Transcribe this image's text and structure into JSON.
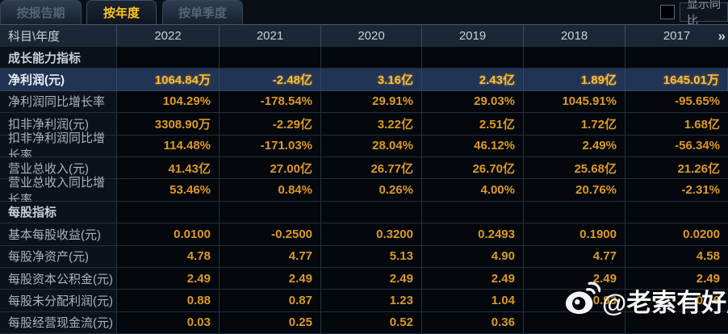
{
  "tabs": [
    {
      "label": "按报告期",
      "active": false
    },
    {
      "label": "按年度",
      "active": true
    },
    {
      "label": "按单季度",
      "active": false
    }
  ],
  "controls": {
    "show_yoy_label": "显示同比",
    "checkbox_checked": false
  },
  "table": {
    "corner_label": "科目\\年度",
    "years": [
      "2022",
      "2021",
      "2020",
      "2019",
      "2018",
      "2017"
    ],
    "more_icon": "»",
    "rows": [
      {
        "label": "成长能力指标",
        "type": "section",
        "values": [
          "",
          "",
          "",
          "",
          "",
          ""
        ]
      },
      {
        "label": "净利润(元)",
        "type": "highlight",
        "values": [
          "1064.84万",
          "-2.48亿",
          "3.16亿",
          "2.43亿",
          "1.89亿",
          "1645.01万"
        ]
      },
      {
        "label": "净利润同比增长率",
        "type": "data",
        "values": [
          "104.29%",
          "-178.54%",
          "29.91%",
          "29.03%",
          "1045.91%",
          "-95.65%"
        ]
      },
      {
        "label": "扣非净利润(元)",
        "type": "data",
        "values": [
          "3308.90万",
          "-2.29亿",
          "3.22亿",
          "2.51亿",
          "1.72亿",
          "1.68亿"
        ]
      },
      {
        "label": "扣非净利润同比增长率",
        "type": "data",
        "values": [
          "114.48%",
          "-171.03%",
          "28.04%",
          "46.12%",
          "2.49%",
          "-56.34%"
        ]
      },
      {
        "label": "营业总收入(元)",
        "type": "data",
        "values": [
          "41.43亿",
          "27.00亿",
          "26.77亿",
          "26.70亿",
          "25.68亿",
          "21.26亿"
        ]
      },
      {
        "label": "营业总收入同比增长率",
        "type": "data",
        "values": [
          "53.46%",
          "0.84%",
          "0.26%",
          "4.00%",
          "20.76%",
          "-2.31%"
        ]
      },
      {
        "label": "每股指标",
        "type": "section",
        "values": [
          "",
          "",
          "",
          "",
          "",
          ""
        ]
      },
      {
        "label": "基本每股收益(元)",
        "type": "data",
        "values": [
          "0.0100",
          "-0.2500",
          "0.3200",
          "0.2493",
          "0.1900",
          "0.0200"
        ]
      },
      {
        "label": "每股净资产(元)",
        "type": "data",
        "values": [
          "4.78",
          "4.77",
          "5.13",
          "4.90",
          "4.77",
          "4.58"
        ]
      },
      {
        "label": "每股资本公积金(元)",
        "type": "data",
        "values": [
          "2.49",
          "2.49",
          "2.49",
          "2.49",
          "2.49",
          "2.49"
        ]
      },
      {
        "label": "每股未分配利润(元)",
        "type": "data",
        "values": [
          "0.88",
          "0.87",
          "1.23",
          "1.04",
          "0.93",
          "0.76"
        ]
      },
      {
        "label": "每股经营现金流(元)",
        "type": "data",
        "values": [
          "0.03",
          "0.25",
          "0.52",
          "0.36",
          "",
          ""
        ]
      }
    ]
  },
  "watermark": {
    "text": "@老索有好股",
    "icon": "weibo-icon"
  },
  "colors": {
    "accent_gold": "#ffc41f",
    "value_orange": "#dc9a26",
    "highlight_row_bg": "#223453",
    "header_bg": "#1b2734",
    "page_bg": "#0a0f16"
  }
}
